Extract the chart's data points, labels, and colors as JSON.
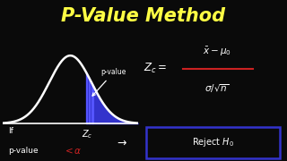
{
  "background_color": "#0a0a0a",
  "title": "P-Value Method",
  "title_color": "#ffff44",
  "title_fontsize": 15,
  "curve_color": "#ffffff",
  "fill_color": "#3333cc",
  "line_color": "#ffffff",
  "text_color": "#ffffff",
  "red_color": "#cc2222",
  "box_color": "#3333cc",
  "zc_val": 0.75,
  "curve_xlim": [
    -3.2,
    3.2
  ],
  "curve_ylim": [
    -0.05,
    0.47
  ]
}
